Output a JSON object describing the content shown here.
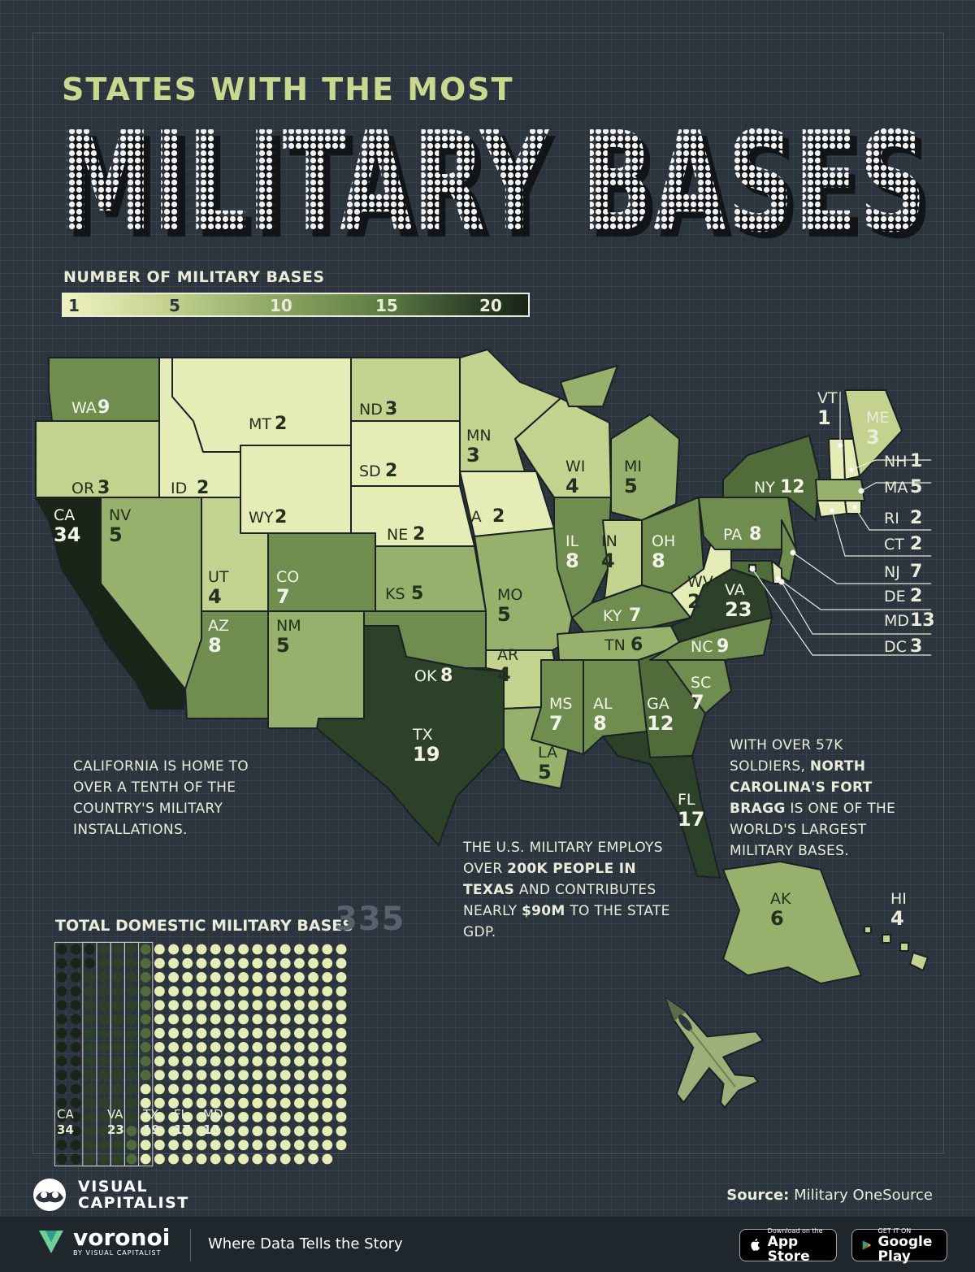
{
  "header": {
    "subtitle": "STATES WITH THE MOST",
    "title": "MILITARY BASES"
  },
  "legend": {
    "title": "NUMBER OF MILITARY BASES",
    "ticks": [
      "1",
      "5",
      "10",
      "15",
      "20"
    ]
  },
  "colors": {
    "background": "#2c353e",
    "scale": [
      "#e6ecb6",
      "#c4d290",
      "#97b06c",
      "#6e8d4f",
      "#4f6c3a",
      "#2d4128",
      "#1a2418"
    ],
    "text": "#e8ecd8",
    "accent_title": "#c8d98f"
  },
  "states": [
    {
      "abbr": "WA",
      "value": "9"
    },
    {
      "abbr": "OR",
      "value": "3"
    },
    {
      "abbr": "CA",
      "value": "34"
    },
    {
      "abbr": "ID",
      "value": "2"
    },
    {
      "abbr": "NV",
      "value": "5"
    },
    {
      "abbr": "MT",
      "value": "2"
    },
    {
      "abbr": "WY",
      "value": "2"
    },
    {
      "abbr": "UT",
      "value": "4"
    },
    {
      "abbr": "CO",
      "value": "7"
    },
    {
      "abbr": "AZ",
      "value": "8"
    },
    {
      "abbr": "NM",
      "value": "5"
    },
    {
      "abbr": "ND",
      "value": "3"
    },
    {
      "abbr": "SD",
      "value": "2"
    },
    {
      "abbr": "NE",
      "value": "2"
    },
    {
      "abbr": "KS",
      "value": "5"
    },
    {
      "abbr": "OK",
      "value": "8"
    },
    {
      "abbr": "TX",
      "value": "19"
    },
    {
      "abbr": "MN",
      "value": "3"
    },
    {
      "abbr": "IA",
      "value": "2"
    },
    {
      "abbr": "MO",
      "value": "5"
    },
    {
      "abbr": "AR",
      "value": "4"
    },
    {
      "abbr": "LA",
      "value": "5"
    },
    {
      "abbr": "WI",
      "value": "4"
    },
    {
      "abbr": "IL",
      "value": "8"
    },
    {
      "abbr": "MI",
      "value": "5"
    },
    {
      "abbr": "IN",
      "value": "4"
    },
    {
      "abbr": "OH",
      "value": "8"
    },
    {
      "abbr": "KY",
      "value": "7"
    },
    {
      "abbr": "TN",
      "value": "6"
    },
    {
      "abbr": "MS",
      "value": "7"
    },
    {
      "abbr": "AL",
      "value": "8"
    },
    {
      "abbr": "GA",
      "value": "12"
    },
    {
      "abbr": "FL",
      "value": "17"
    },
    {
      "abbr": "SC",
      "value": "7"
    },
    {
      "abbr": "NC",
      "value": "9"
    },
    {
      "abbr": "VA",
      "value": "23"
    },
    {
      "abbr": "WV",
      "value": "2"
    },
    {
      "abbr": "PA",
      "value": "8"
    },
    {
      "abbr": "NY",
      "value": "12"
    },
    {
      "abbr": "VT",
      "value": "1"
    },
    {
      "abbr": "ME",
      "value": "3"
    },
    {
      "abbr": "NH",
      "value": "1"
    },
    {
      "abbr": "MA",
      "value": "5"
    },
    {
      "abbr": "RI",
      "value": "2"
    },
    {
      "abbr": "CT",
      "value": "2"
    },
    {
      "abbr": "NJ",
      "value": "7"
    },
    {
      "abbr": "DE",
      "value": "2"
    },
    {
      "abbr": "MD",
      "value": "13"
    },
    {
      "abbr": "DC",
      "value": "3"
    },
    {
      "abbr": "AK",
      "value": "6"
    },
    {
      "abbr": "HI",
      "value": "4"
    }
  ],
  "annotations": {
    "california": "CALIFORNIA IS HOME TO OVER A TENTH OF THE COUNTRY'S MILITARY INSTALLATIONS.",
    "texas_pre": "THE U.S. MILITARY EMPLOYS OVER ",
    "texas_bold1": "200K PEOPLE IN TEXAS",
    "texas_mid": " AND CONTRIBUTES NEARLY ",
    "texas_bold2": "$90M",
    "texas_post": " TO THE STATE GDP.",
    "nc_pre": "WITH OVER 57K SOLDIERS, ",
    "nc_bold": "NORTH CAROLINA'S FORT BRAGG",
    "nc_post": " IS ONE OF THE WORLD'S LARGEST MILITARY BASES."
  },
  "totals": {
    "label": "TOTAL DOMESTIC MILITARY BASES",
    "value": "335",
    "highlights": [
      {
        "abbr": "CA",
        "value": "34"
      },
      {
        "abbr": "VA",
        "value": "23"
      },
      {
        "abbr": "TX",
        "value": "19"
      },
      {
        "abbr": "FL",
        "value": "17"
      },
      {
        "abbr": "MD",
        "value": "13"
      }
    ]
  },
  "footer": {
    "brand": "VISUAL CAPITALIST",
    "source_label": "Source:",
    "source_value": "Military OneSource",
    "voronoi_name": "voronoi",
    "voronoi_sub": "BY VISUAL CAPITALIST",
    "tagline": "Where Data Tells the Story",
    "appstore_small": "Download on the",
    "appstore_big": "App Store",
    "googleplay_small": "GET IT ON",
    "googleplay_big": "Google Play"
  },
  "icons": [
    "visual-capitalist-logo-icon",
    "voronoi-logo-icon",
    "apple-icon",
    "google-play-icon",
    "fighter-jet-icon"
  ]
}
